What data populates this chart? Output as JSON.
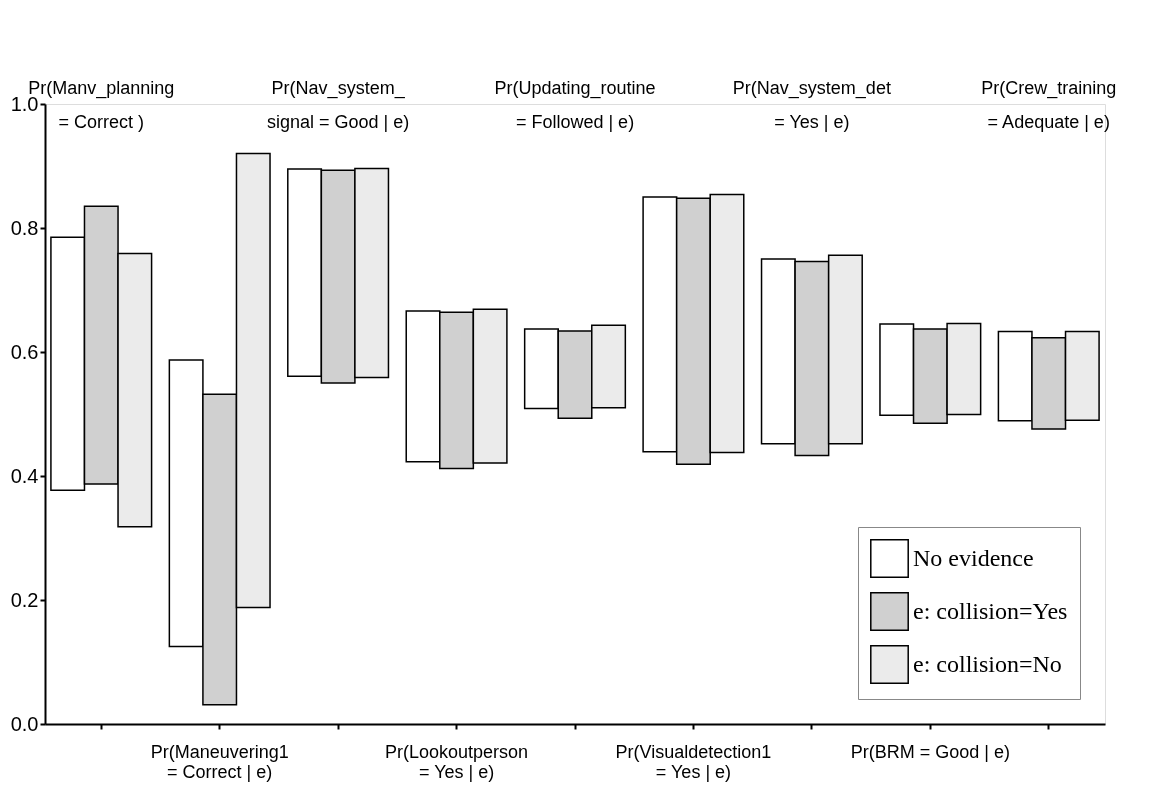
{
  "chart_data": {
    "type": "bar",
    "categories": [
      "Pr(Manv_planning\n = Correct )",
      "Pr(Maneuvering1\n= Correct | e)",
      "Pr(Nav_system_\nsignal = Good | e)",
      "Pr(Lookoutperson\n= Yes | e)",
      "Pr(Updating_routine\n= Followed | e)",
      "Pr(Visualdetection1\n= Yes | e)",
      "Pr(Nav_system_det\n= Yes | e)",
      "Pr(BRM = Good | e)",
      "Pr(Crew_training\n= Adequate | e)"
    ],
    "series": [
      {
        "name": "No evidence",
        "color": "#ffffff",
        "base": [
          0.377,
          0.125,
          0.561,
          0.423,
          0.509,
          0.439,
          0.452,
          0.498,
          0.489
        ],
        "values": [
          0.408,
          0.462,
          0.334,
          0.243,
          0.128,
          0.411,
          0.298,
          0.147,
          0.144
        ]
      },
      {
        "name": "e: collision=Yes",
        "color": "#d0d0d0",
        "base": [
          0.387,
          0.031,
          0.55,
          0.412,
          0.493,
          0.419,
          0.433,
          0.485,
          0.476
        ],
        "values": [
          0.448,
          0.501,
          0.343,
          0.252,
          0.141,
          0.429,
          0.313,
          0.152,
          0.147
        ]
      },
      {
        "name": "e: collision=No",
        "color": "#ebebeb",
        "base": [
          0.318,
          0.188,
          0.559,
          0.421,
          0.51,
          0.438,
          0.452,
          0.499,
          0.49
        ],
        "values": [
          0.441,
          0.732,
          0.337,
          0.248,
          0.133,
          0.416,
          0.304,
          0.147,
          0.143
        ]
      }
    ],
    "ylim": [
      0,
      1
    ],
    "yticks": [
      {
        "value": 0,
        "label": "0.0"
      },
      {
        "value": 0.2,
        "label": "0.2"
      },
      {
        "value": 0.4,
        "label": "0.4"
      },
      {
        "value": 0.6,
        "label": "0.6"
      },
      {
        "value": 0.8,
        "label": "0.8"
      },
      {
        "value": 1,
        "label": "1.0"
      }
    ],
    "grid": false,
    "legend": "bottom right"
  }
}
